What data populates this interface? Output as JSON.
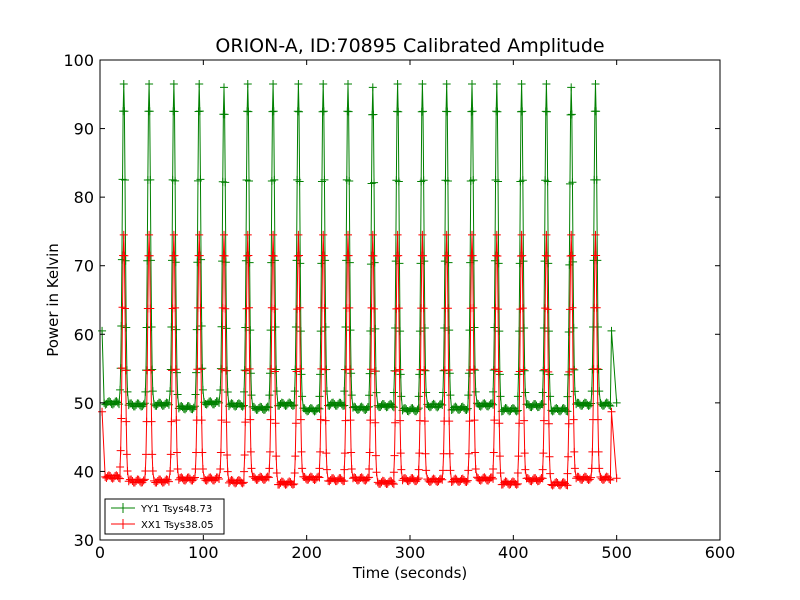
{
  "chart_data": {
    "type": "line",
    "title": "ORION-A, ID:70895 Calibrated Amplitude",
    "xlabel": "Time (seconds)",
    "ylabel": "Power in Kelvin",
    "xlim": [
      0,
      600
    ],
    "ylim": [
      30,
      100
    ],
    "xticks": [
      0,
      100,
      200,
      300,
      400,
      500,
      600
    ],
    "yticks": [
      30,
      40,
      50,
      60,
      70,
      80,
      90,
      100
    ],
    "grid": false,
    "legend_position": "lower-left",
    "series": [
      {
        "name": "YY1 Tsys48.73",
        "color": "#008000",
        "marker": "+",
        "start": [
          [
            2,
            60.5
          ],
          [
            4,
            50.0
          ]
        ],
        "end": [
          [
            495,
            60.5
          ],
          [
            500,
            50.0
          ]
        ],
        "peak_times": [
          23,
          47.5,
          71.5,
          96,
          120,
          143,
          167.5,
          192,
          216,
          240,
          264,
          288,
          312,
          335.5,
          360,
          384,
          408,
          432,
          456,
          479.5
        ],
        "peak_values": [
          96.5,
          96.5,
          96.5,
          96.5,
          96.0,
          96.5,
          96.5,
          96.5,
          96.5,
          96.5,
          96.0,
          96.5,
          96.5,
          96.5,
          96.5,
          96.5,
          96.5,
          96.5,
          96.0,
          96.5
        ],
        "baseline_values": [
          50.0,
          49.7,
          49.8,
          49.3,
          50.0,
          49.7,
          49.2,
          49.8,
          49.0,
          49.8,
          49.2,
          49.6,
          49.0,
          49.6,
          49.2,
          49.7,
          49.0,
          49.6,
          49.0,
          49.8,
          49.8
        ]
      },
      {
        "name": "XX1 Tsys38.05",
        "color": "#ff0000",
        "marker": "+",
        "start": [
          [
            2,
            48.7
          ],
          [
            5,
            39.2
          ]
        ],
        "end": [
          [
            495,
            48.7
          ],
          [
            500,
            39.0
          ]
        ],
        "peak_times": [
          23,
          47.5,
          71.5,
          96,
          120,
          143,
          167.5,
          192,
          216,
          240,
          264,
          288,
          312,
          335.5,
          360,
          384,
          408,
          432,
          456,
          479.5
        ],
        "peak_values": [
          74.5,
          74.5,
          74.5,
          74.5,
          74.5,
          74.5,
          74.5,
          74.5,
          74.5,
          74.5,
          74.5,
          74.5,
          74.5,
          74.5,
          74.5,
          74.5,
          74.5,
          74.5,
          74.5,
          74.5
        ],
        "baseline_values": [
          39.2,
          38.6,
          38.6,
          38.9,
          38.9,
          38.5,
          39.0,
          38.3,
          39.0,
          38.8,
          38.9,
          38.4,
          38.8,
          38.7,
          38.7,
          38.9,
          38.3,
          38.8,
          38.2,
          39.0,
          39.0
        ]
      }
    ]
  }
}
